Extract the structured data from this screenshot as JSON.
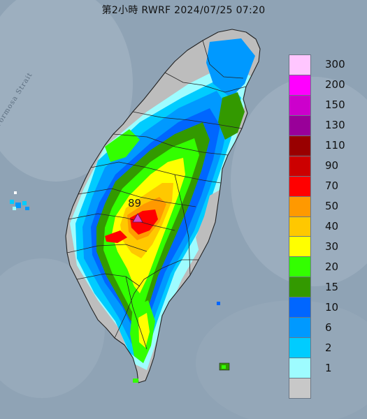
{
  "header": {
    "title": "第2小時  RWRF 2024/07/25 07:20"
  },
  "map": {
    "sea_label": "Formosa Strait",
    "max_value_label": "89",
    "max_marker_color": "#d946c8",
    "background_color": "#8fa3b5",
    "land_base_color": "#bdbdbd"
  },
  "legend": {
    "items": [
      {
        "label": "300",
        "color": "#ffc6ff"
      },
      {
        "label": "200",
        "color": "#ff00ff"
      },
      {
        "label": "150",
        "color": "#cc00cc"
      },
      {
        "label": "130",
        "color": "#990099"
      },
      {
        "label": "110",
        "color": "#990000"
      },
      {
        "label": "90",
        "color": "#cc0000"
      },
      {
        "label": "70",
        "color": "#ff0000"
      },
      {
        "label": "50",
        "color": "#ff9900"
      },
      {
        "label": "40",
        "color": "#ffc800"
      },
      {
        "label": "30",
        "color": "#ffff00"
      },
      {
        "label": "20",
        "color": "#33ff00"
      },
      {
        "label": "15",
        "color": "#339900"
      },
      {
        "label": "10",
        "color": "#0066ff"
      },
      {
        "label": "6",
        "color": "#0099ff"
      },
      {
        "label": "2",
        "color": "#00ccff"
      },
      {
        "label": "1",
        "color": "#9efcff"
      },
      {
        "label": "",
        "color": "#c8c8c8"
      }
    ]
  }
}
